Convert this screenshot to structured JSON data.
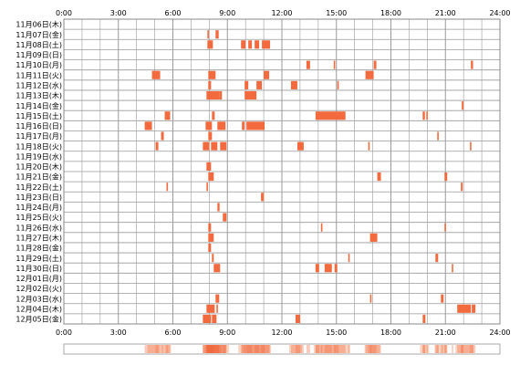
{
  "chart_data": {
    "type": "heatmap",
    "title": "",
    "xlabel": "",
    "ylabel": "",
    "x_range_hours": [
      0,
      24
    ],
    "x_ticks": [
      "0:00",
      "3:00",
      "6:00",
      "9:00",
      "12:00",
      "15:00",
      "18:00",
      "21:00",
      "24:00"
    ],
    "grid": true,
    "summary_strip": true,
    "colors": {
      "bar": "#f26a3e",
      "grid": "#9a9a9a",
      "border": "#888888",
      "strip_border": "#aaaaaa",
      "strip_fill": "#fbd3c0"
    },
    "rows": [
      {
        "label": "11月06日(木)",
        "events": []
      },
      {
        "label": "11月07日(金)",
        "events": [
          [
            7.9,
            0.08
          ],
          [
            8.35,
            0.17
          ]
        ]
      },
      {
        "label": "11月08日(土)",
        "events": [
          [
            7.9,
            0.3
          ],
          [
            9.75,
            0.25
          ],
          [
            10.15,
            0.2
          ],
          [
            10.5,
            0.25
          ],
          [
            10.9,
            0.45
          ]
        ]
      },
      {
        "label": "11月09日(日)",
        "events": []
      },
      {
        "label": "11月10日(月)",
        "events": [
          [
            13.35,
            0.2
          ],
          [
            14.85,
            0.08
          ],
          [
            17.05,
            0.15
          ],
          [
            22.4,
            0.12
          ]
        ]
      },
      {
        "label": "11月11日(火)",
        "events": [
          [
            4.85,
            0.45
          ],
          [
            7.95,
            0.4
          ],
          [
            11.0,
            0.3
          ],
          [
            16.6,
            0.45
          ]
        ]
      },
      {
        "label": "11月12日(水)",
        "events": [
          [
            7.95,
            0.15
          ],
          [
            9.95,
            0.2
          ],
          [
            10.6,
            0.3
          ],
          [
            12.5,
            0.35
          ],
          [
            15.05,
            0.08
          ]
        ]
      },
      {
        "label": "11月13日(木)",
        "events": [
          [
            7.85,
            0.7
          ],
          [
            8.55,
            0.15
          ],
          [
            9.95,
            0.65
          ]
        ]
      },
      {
        "label": "11月14日(金)",
        "events": [
          [
            21.9,
            0.1
          ]
        ]
      },
      {
        "label": "11月15日(土)",
        "events": [
          [
            5.55,
            0.3
          ],
          [
            8.15,
            0.15
          ],
          [
            13.85,
            1.65
          ],
          [
            19.75,
            0.12
          ],
          [
            19.95,
            0.08
          ]
        ]
      },
      {
        "label": "11月16日(日)",
        "events": [
          [
            4.45,
            0.4
          ],
          [
            7.8,
            0.35
          ],
          [
            8.45,
            0.45
          ],
          [
            9.8,
            0.15
          ],
          [
            10.05,
            1.0
          ]
        ]
      },
      {
        "label": "11月17日(月)",
        "events": [
          [
            5.35,
            0.15
          ],
          [
            7.95,
            0.2
          ],
          [
            20.55,
            0.08
          ]
        ]
      },
      {
        "label": "11月18日(火)",
        "events": [
          [
            5.05,
            0.15
          ],
          [
            7.65,
            0.35
          ],
          [
            8.1,
            0.35
          ],
          [
            8.6,
            0.35
          ],
          [
            12.85,
            0.35
          ],
          [
            16.75,
            0.08
          ],
          [
            22.35,
            0.08
          ]
        ]
      },
      {
        "label": "11月19日(水)",
        "events": []
      },
      {
        "label": "11月20日(木)",
        "events": [
          [
            7.85,
            0.25
          ]
        ]
      },
      {
        "label": "11月21日(金)",
        "events": [
          [
            7.95,
            0.3
          ],
          [
            17.25,
            0.2
          ],
          [
            20.95,
            0.15
          ]
        ]
      },
      {
        "label": "11月22日(土)",
        "events": [
          [
            5.65,
            0.08
          ],
          [
            7.85,
            0.08
          ],
          [
            21.85,
            0.1
          ]
        ]
      },
      {
        "label": "11月23日(日)",
        "events": [
          [
            10.85,
            0.15
          ]
        ]
      },
      {
        "label": "11月24日(月)",
        "events": [
          [
            8.45,
            0.12
          ]
        ]
      },
      {
        "label": "11月25日(火)",
        "events": [
          [
            8.75,
            0.2
          ]
        ]
      },
      {
        "label": "11月26日(水)",
        "events": [
          [
            7.95,
            0.15
          ],
          [
            14.15,
            0.08
          ],
          [
            20.95,
            0.08
          ]
        ]
      },
      {
        "label": "11月27日(木)",
        "events": [
          [
            7.95,
            0.3
          ],
          [
            16.85,
            0.4
          ]
        ]
      },
      {
        "label": "11月28日(金)",
        "events": [
          [
            7.95,
            0.15
          ]
        ]
      },
      {
        "label": "11月29日(土)",
        "events": [
          [
            8.15,
            0.1
          ],
          [
            15.65,
            0.08
          ],
          [
            20.45,
            0.15
          ]
        ]
      },
      {
        "label": "11月30日(日)",
        "events": [
          [
            8.25,
            0.35
          ],
          [
            13.85,
            0.2
          ],
          [
            14.35,
            0.4
          ],
          [
            14.9,
            0.15
          ],
          [
            21.35,
            0.08
          ]
        ]
      },
      {
        "label": "12月01日(月)",
        "events": []
      },
      {
        "label": "12月02日(火)",
        "events": []
      },
      {
        "label": "12月03日(水)",
        "events": [
          [
            8.35,
            0.2
          ],
          [
            16.85,
            0.08
          ],
          [
            20.75,
            0.15
          ]
        ]
      },
      {
        "label": "12月04日(木)",
        "events": [
          [
            7.85,
            0.45
          ],
          [
            8.4,
            0.08
          ],
          [
            21.65,
            0.75
          ],
          [
            22.45,
            0.2
          ]
        ]
      },
      {
        "label": "12月05日(金)",
        "events": [
          [
            7.65,
            0.45
          ],
          [
            8.15,
            0.25
          ],
          [
            12.75,
            0.25
          ],
          [
            19.75,
            0.15
          ]
        ]
      }
    ],
    "summary": [
      [
        4.6,
        1.3
      ],
      [
        7.65,
        1.45
      ],
      [
        9.6,
        1.8
      ],
      [
        12.4,
        0.7
      ],
      [
        13.75,
        2.0
      ],
      [
        16.55,
        0.85
      ],
      [
        19.6,
        0.5
      ],
      [
        20.4,
        0.7
      ],
      [
        21.55,
        1.0
      ]
    ]
  }
}
